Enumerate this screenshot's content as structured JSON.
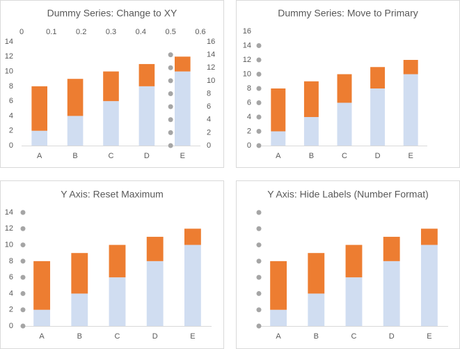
{
  "chart_data": [
    {
      "type": "bar",
      "stacked": true,
      "title": "Dummy Series: Change to XY",
      "categories": [
        "A",
        "B",
        "C",
        "D",
        "E"
      ],
      "series": [
        {
          "color": "#d0ddf1",
          "values": [
            2,
            4,
            6,
            8,
            10
          ]
        },
        {
          "color": "#ed7d31",
          "values": [
            6,
            5,
            4,
            3,
            2
          ]
        }
      ],
      "dummy": {
        "type": "scatter",
        "color": "#a5a5a5",
        "axis": "y2",
        "x": [
          0.5,
          0.5,
          0.5,
          0.5,
          0.5,
          0.5,
          0.5,
          0.5
        ],
        "values": [
          0,
          2,
          4,
          6,
          8,
          10,
          12,
          14
        ]
      },
      "ylim": [
        0,
        14
      ],
      "yticks": [
        0,
        2,
        4,
        6,
        8,
        10,
        12,
        14
      ],
      "y2lim": [
        0,
        16
      ],
      "y2ticks": [
        0,
        2,
        4,
        6,
        8,
        10,
        12,
        14,
        16
      ],
      "xlim": [
        0,
        0.6
      ],
      "xticks": [
        0,
        0.1,
        0.2,
        0.3,
        0.4,
        0.5,
        0.6
      ]
    },
    {
      "type": "bar",
      "stacked": true,
      "title": "Dummy Series: Move to Primary",
      "categories": [
        "A",
        "B",
        "C",
        "D",
        "E"
      ],
      "series": [
        {
          "color": "#d0ddf1",
          "values": [
            2,
            4,
            6,
            8,
            10
          ]
        },
        {
          "color": "#ed7d31",
          "values": [
            6,
            5,
            4,
            3,
            2
          ]
        }
      ],
      "dummy": {
        "type": "scatter",
        "color": "#a5a5a5",
        "values": [
          0,
          2,
          4,
          6,
          8,
          10,
          12,
          14
        ]
      },
      "ylim": [
        0,
        16
      ],
      "yticks": [
        0,
        2,
        4,
        6,
        8,
        10,
        12,
        14,
        16
      ]
    },
    {
      "type": "bar",
      "stacked": true,
      "title": "Y Axis: Reset Maximum",
      "categories": [
        "A",
        "B",
        "C",
        "D",
        "E"
      ],
      "series": [
        {
          "color": "#d0ddf1",
          "values": [
            2,
            4,
            6,
            8,
            10
          ]
        },
        {
          "color": "#ed7d31",
          "values": [
            6,
            5,
            4,
            3,
            2
          ]
        }
      ],
      "dummy": {
        "type": "scatter",
        "color": "#a5a5a5",
        "values": [
          0,
          2,
          4,
          6,
          8,
          10,
          12,
          14
        ]
      },
      "ylim": [
        0,
        14
      ],
      "yticks": [
        0,
        2,
        4,
        6,
        8,
        10,
        12,
        14
      ]
    },
    {
      "type": "bar",
      "stacked": true,
      "title": "Y Axis: Hide Labels (Number Format)",
      "categories": [
        "A",
        "B",
        "C",
        "D",
        "E"
      ],
      "series": [
        {
          "color": "#d0ddf1",
          "values": [
            2,
            4,
            6,
            8,
            10
          ]
        },
        {
          "color": "#ed7d31",
          "values": [
            6,
            5,
            4,
            3,
            2
          ]
        }
      ],
      "dummy": {
        "type": "scatter",
        "color": "#a5a5a5",
        "values": [
          0,
          2,
          4,
          6,
          8,
          10,
          12,
          14
        ]
      },
      "ylim": [
        0,
        14
      ]
    }
  ]
}
